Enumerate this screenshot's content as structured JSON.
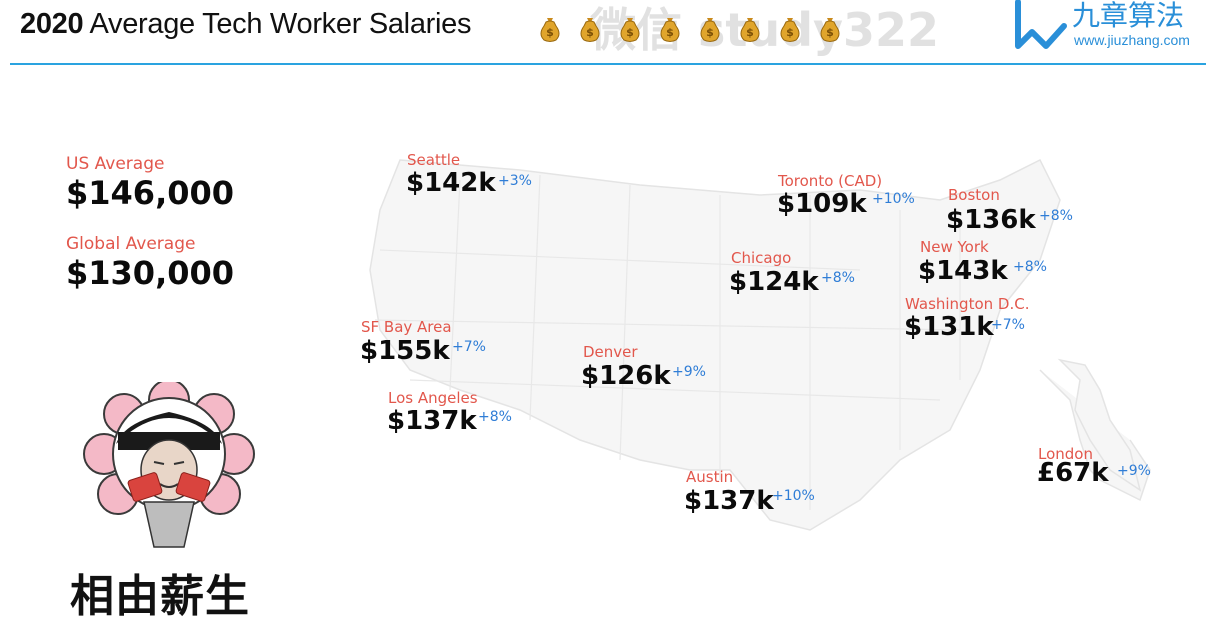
{
  "header": {
    "title_year": "2020",
    "title_text": "Average Tech Worker Salaries",
    "watermark": "微信 study322",
    "logo_brand": "九章算法",
    "logo_url": "www.jiuzhang.com",
    "accent_color": "#2aa3e0"
  },
  "summary": {
    "us_label": "US Average",
    "us_value": "$146,000",
    "global_label": "Global Average",
    "global_value": "$130,000"
  },
  "cities": [
    {
      "name": "Seattle",
      "salary": "$142k",
      "growth": "+3%"
    },
    {
      "name": "Toronto (CAD)",
      "salary": "$109k",
      "growth": "+10%"
    },
    {
      "name": "Boston",
      "salary": "$136k",
      "growth": "+8%"
    },
    {
      "name": "Chicago",
      "salary": "$124k",
      "growth": "+8%"
    },
    {
      "name": "New York",
      "salary": "$143k",
      "growth": "+8%"
    },
    {
      "name": "Washington D.C.",
      "salary": "$131k",
      "growth": "+7%"
    },
    {
      "name": "SF Bay Area",
      "salary": "$155k",
      "growth": "+7%"
    },
    {
      "name": "Denver",
      "salary": "$126k",
      "growth": "+9%"
    },
    {
      "name": "Los Angeles",
      "salary": "$137k",
      "growth": "+8%"
    },
    {
      "name": "Austin",
      "salary": "$137k",
      "growth": "+10%"
    },
    {
      "name": "London",
      "salary": "£67k",
      "growth": "+9%"
    }
  ],
  "meme": {
    "caption": "相由薪生"
  },
  "colors": {
    "city_label": "#e2574c",
    "growth": "#2f7dd6",
    "salary": "#0b0b0b"
  },
  "icons": [
    "money-bag-icon",
    "jiuzhang-logo-icon"
  ]
}
